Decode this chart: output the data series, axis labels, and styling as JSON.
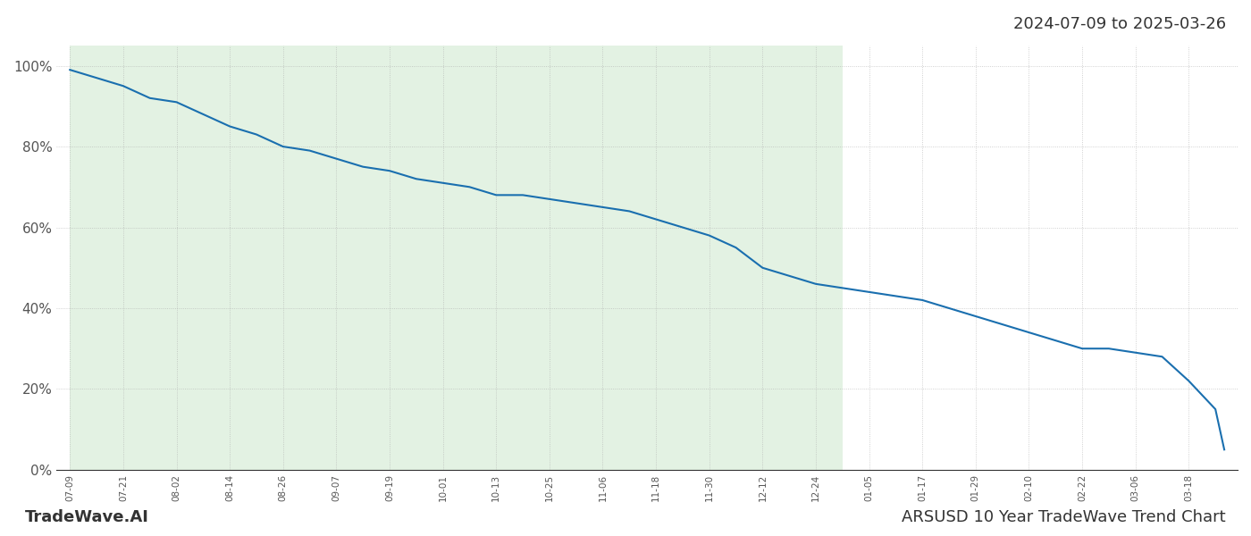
{
  "title_top_right": "2024-07-09 to 2025-03-26",
  "title_bottom_left": "TradeWave.AI",
  "title_bottom_right": "ARSUSD 10 Year TradeWave Trend Chart",
  "line_color": "#1a6faf",
  "fill_color": "#c8e6c9",
  "fill_alpha": 0.5,
  "background_color": "#ffffff",
  "grid_color": "#aaaaaa",
  "y_ticks": [
    0,
    20,
    40,
    60,
    80,
    100
  ],
  "y_labels": [
    "0%",
    "20%",
    "40%",
    "60%",
    "80%",
    "100%"
  ],
  "ylim": [
    0,
    105
  ],
  "shaded_region_start": "2024-07-09",
  "shaded_region_end": "2024-12-30",
  "x_dates": [
    "2024-07-09",
    "2024-07-15",
    "2024-07-21",
    "2024-07-27",
    "2024-08-02",
    "2024-08-08",
    "2024-08-14",
    "2024-08-20",
    "2024-08-26",
    "2024-09-01",
    "2024-09-07",
    "2024-09-13",
    "2024-09-19",
    "2024-09-25",
    "2024-10-01",
    "2024-10-07",
    "2024-10-13",
    "2024-10-19",
    "2024-10-25",
    "2024-10-31",
    "2024-11-06",
    "2024-11-12",
    "2024-11-18",
    "2024-11-24",
    "2024-11-30",
    "2024-12-06",
    "2024-12-12",
    "2024-12-18",
    "2024-12-24",
    "2024-12-30",
    "2025-01-05",
    "2025-01-11",
    "2025-01-17",
    "2025-01-23",
    "2025-01-29",
    "2025-02-04",
    "2025-02-10",
    "2025-02-16",
    "2025-02-22",
    "2025-02-28",
    "2025-03-06",
    "2025-03-12",
    "2025-03-18",
    "2025-03-24",
    "2025-03-26"
  ],
  "y_values": [
    99,
    97,
    95,
    92,
    91,
    88,
    85,
    83,
    80,
    79,
    77,
    75,
    74,
    72,
    71,
    70,
    68,
    68,
    67,
    66,
    65,
    64,
    62,
    60,
    58,
    55,
    50,
    48,
    46,
    45,
    44,
    43,
    42,
    40,
    38,
    36,
    34,
    32,
    30,
    30,
    29,
    28,
    22,
    15,
    5
  ],
  "tick_dates": [
    "2024-07-09",
    "2024-07-21",
    "2024-08-02",
    "2024-08-14",
    "2024-08-26",
    "2024-09-07",
    "2024-09-19",
    "2024-10-01",
    "2024-10-13",
    "2024-10-25",
    "2024-11-06",
    "2024-11-18",
    "2024-11-30",
    "2024-12-12",
    "2024-12-24",
    "2025-01-05",
    "2025-01-17",
    "2025-01-29",
    "2025-02-10",
    "2025-02-22",
    "2025-03-06",
    "2025-03-18"
  ],
  "tick_labels": [
    "07-09",
    "07-21",
    "08-02",
    "08-14",
    "08-26",
    "09-07",
    "09-19",
    "10-01",
    "10-13",
    "10-25",
    "11-06",
    "11-18",
    "11-30",
    "12-12",
    "12-24",
    "01-05",
    "01-17",
    "01-29",
    "02-10",
    "02-22",
    "03-06",
    "03-18"
  ]
}
